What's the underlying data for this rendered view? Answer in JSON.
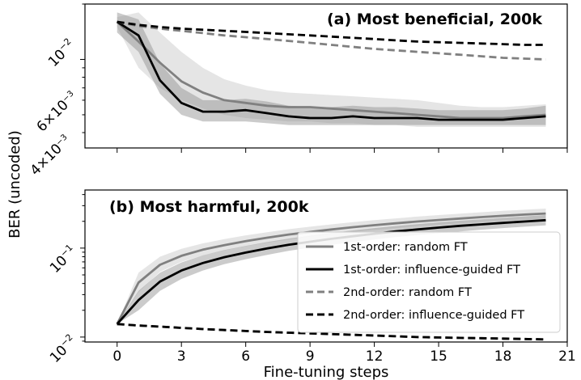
{
  "figure": {
    "ylabel": "BER (uncoded)",
    "xlabel": "Fine-tuning steps",
    "xticks": [
      "0",
      "3",
      "6",
      "9",
      "12",
      "15",
      "18",
      "21"
    ]
  },
  "chart_data": [
    {
      "type": "line",
      "title": "(a) Most beneficial, 200k",
      "xlabel": "",
      "ylabel": "BER (uncoded)",
      "yscale": "log",
      "xlim": [
        -1.5,
        21
      ],
      "ylim": [
        0.0033,
        0.02
      ],
      "ytick_labels": [
        "10^{-2}",
        "6×10^{-3}",
        "4×10^{-3}"
      ],
      "x": [
        0,
        1,
        2,
        3,
        4,
        5,
        6,
        7,
        8,
        9,
        10,
        11,
        12,
        13,
        14,
        15,
        16,
        17,
        18,
        19,
        20
      ],
      "series": [
        {
          "name": "1st-order: random FT",
          "color": "#808080",
          "dash": "solid",
          "values": [
            0.016,
            0.0125,
            0.0096,
            0.0076,
            0.0066,
            0.006,
            0.0058,
            0.0056,
            0.0055,
            0.0055,
            0.0054,
            0.0053,
            0.0052,
            0.0051,
            0.005,
            0.0049,
            0.0048,
            0.0048,
            0.0048,
            0.0049,
            0.005
          ],
          "band_lower": [
            0.015,
            0.009,
            0.007,
            0.006,
            0.0054,
            0.005,
            0.0048,
            0.0047,
            0.0046,
            0.0046,
            0.0045,
            0.0045,
            0.0044,
            0.0044,
            0.0043,
            0.0043,
            0.0043,
            0.0043,
            0.0043,
            0.0043,
            0.0043
          ],
          "band_upper": [
            0.017,
            0.018,
            0.014,
            0.011,
            0.009,
            0.0078,
            0.0072,
            0.0068,
            0.0066,
            0.0065,
            0.0064,
            0.0063,
            0.0062,
            0.0061,
            0.006,
            0.0058,
            0.0056,
            0.0055,
            0.0055,
            0.0056,
            0.0057
          ]
        },
        {
          "name": "1st-order: influence-guided FT",
          "color": "#000000",
          "dash": "solid",
          "values": [
            0.016,
            0.0135,
            0.0077,
            0.0058,
            0.0052,
            0.0052,
            0.0053,
            0.0051,
            0.0049,
            0.0048,
            0.0048,
            0.0049,
            0.0048,
            0.0048,
            0.0048,
            0.0047,
            0.0047,
            0.0047,
            0.0047,
            0.0048,
            0.0049
          ],
          "band_lower": [
            0.014,
            0.011,
            0.0065,
            0.005,
            0.0046,
            0.0046,
            0.0046,
            0.0045,
            0.0044,
            0.0044,
            0.0044,
            0.0044,
            0.0044,
            0.0044,
            0.0044,
            0.0044,
            0.0044,
            0.0044,
            0.0044,
            0.0044,
            0.0044
          ],
          "band_upper": [
            0.018,
            0.0165,
            0.0095,
            0.007,
            0.006,
            0.006,
            0.0061,
            0.0059,
            0.0056,
            0.0055,
            0.0055,
            0.0056,
            0.0055,
            0.0055,
            0.0054,
            0.0053,
            0.0053,
            0.0053,
            0.0053,
            0.0054,
            0.0056
          ]
        },
        {
          "name": "2nd-order: random FT",
          "color": "#808080",
          "dash": "dashed",
          "values": [
            0.016,
            0.0152,
            0.0147,
            0.0143,
            0.0139,
            0.0135,
            0.0132,
            0.0129,
            0.0126,
            0.0123,
            0.012,
            0.0117,
            0.0114,
            0.0112,
            0.011,
            0.0108,
            0.0106,
            0.0104,
            0.0102,
            0.0101,
            0.01
          ]
        },
        {
          "name": "2nd-order: influence-guided FT",
          "color": "#000000",
          "dash": "dashed",
          "values": [
            0.016,
            0.0154,
            0.015,
            0.0147,
            0.0145,
            0.0143,
            0.0141,
            0.0139,
            0.0137,
            0.0135,
            0.0133,
            0.0131,
            0.0129,
            0.0127,
            0.0125,
            0.0124,
            0.0123,
            0.0122,
            0.0121,
            0.012,
            0.012
          ]
        }
      ]
    },
    {
      "type": "line",
      "title": "(b) Most harmful, 200k",
      "xlabel": "Fine-tuning steps",
      "ylabel": "BER (uncoded)",
      "yscale": "log",
      "xlim": [
        -1.5,
        21
      ],
      "ylim": [
        0.0088,
        0.45
      ],
      "ytick_labels": [
        "10^{-2}",
        "10^{-1}"
      ],
      "x": [
        0,
        1,
        2,
        3,
        4,
        5,
        6,
        7,
        8,
        9,
        10,
        11,
        12,
        13,
        14,
        15,
        16,
        17,
        18,
        19,
        20
      ],
      "series": [
        {
          "name": "1st-order: random FT",
          "color": "#808080",
          "dash": "solid",
          "values": [
            0.014,
            0.041,
            0.065,
            0.082,
            0.096,
            0.108,
            0.12,
            0.131,
            0.142,
            0.152,
            0.162,
            0.172,
            0.181,
            0.19,
            0.199,
            0.207,
            0.215,
            0.223,
            0.231,
            0.238,
            0.245
          ],
          "band_lower": [
            0.014,
            0.032,
            0.054,
            0.07,
            0.083,
            0.094,
            0.105,
            0.115,
            0.125,
            0.134,
            0.143,
            0.152,
            0.16,
            0.168,
            0.176,
            0.183,
            0.19,
            0.197,
            0.204,
            0.21,
            0.216
          ],
          "band_upper": [
            0.014,
            0.053,
            0.08,
            0.098,
            0.113,
            0.126,
            0.139,
            0.151,
            0.163,
            0.174,
            0.185,
            0.196,
            0.206,
            0.216,
            0.226,
            0.235,
            0.244,
            0.253,
            0.262,
            0.27,
            0.278
          ]
        },
        {
          "name": "1st-order: influence-guided FT",
          "color": "#000000",
          "dash": "solid",
          "values": [
            0.014,
            0.026,
            0.042,
            0.056,
            0.068,
            0.079,
            0.089,
            0.099,
            0.109,
            0.118,
            0.127,
            0.136,
            0.145,
            0.154,
            0.162,
            0.17,
            0.178,
            0.185,
            0.192,
            0.199,
            0.206
          ],
          "band_lower": [
            0.014,
            0.02,
            0.033,
            0.045,
            0.056,
            0.066,
            0.075,
            0.084,
            0.093,
            0.101,
            0.109,
            0.117,
            0.125,
            0.133,
            0.14,
            0.147,
            0.154,
            0.161,
            0.168,
            0.174,
            0.18
          ],
          "band_upper": [
            0.014,
            0.033,
            0.053,
            0.069,
            0.083,
            0.095,
            0.106,
            0.117,
            0.128,
            0.138,
            0.148,
            0.158,
            0.168,
            0.177,
            0.186,
            0.195,
            0.203,
            0.211,
            0.219,
            0.227,
            0.235
          ]
        },
        {
          "name": "2nd-order: random FT",
          "color": "#808080",
          "dash": "dashed",
          "values": [
            0.014,
            0.0135,
            0.0131,
            0.0127,
            0.0123,
            0.012,
            0.0117,
            0.0114,
            0.0112,
            0.011,
            0.0108,
            0.0106,
            0.0104,
            0.0102,
            0.01,
            0.0099,
            0.0098,
            0.0097,
            0.0096,
            0.0095,
            0.0094
          ]
        },
        {
          "name": "2nd-order: influence-guided FT",
          "color": "#000000",
          "dash": "dashed",
          "values": [
            0.014,
            0.0135,
            0.0131,
            0.0127,
            0.0123,
            0.012,
            0.0117,
            0.0114,
            0.0112,
            0.011,
            0.0108,
            0.0106,
            0.0104,
            0.0102,
            0.01,
            0.0099,
            0.0098,
            0.0097,
            0.0096,
            0.0095,
            0.0094
          ]
        }
      ],
      "legend": {
        "position": "lower-right",
        "entries": [
          {
            "label": "1st-order: random FT",
            "color": "#808080",
            "dash": "solid"
          },
          {
            "label": "1st-order: influence-guided FT",
            "color": "#000000",
            "dash": "solid"
          },
          {
            "label": "2nd-order: random FT",
            "color": "#808080",
            "dash": "dashed"
          },
          {
            "label": "2nd-order: influence-guided FT",
            "color": "#000000",
            "dash": "dashed"
          }
        ]
      }
    }
  ]
}
